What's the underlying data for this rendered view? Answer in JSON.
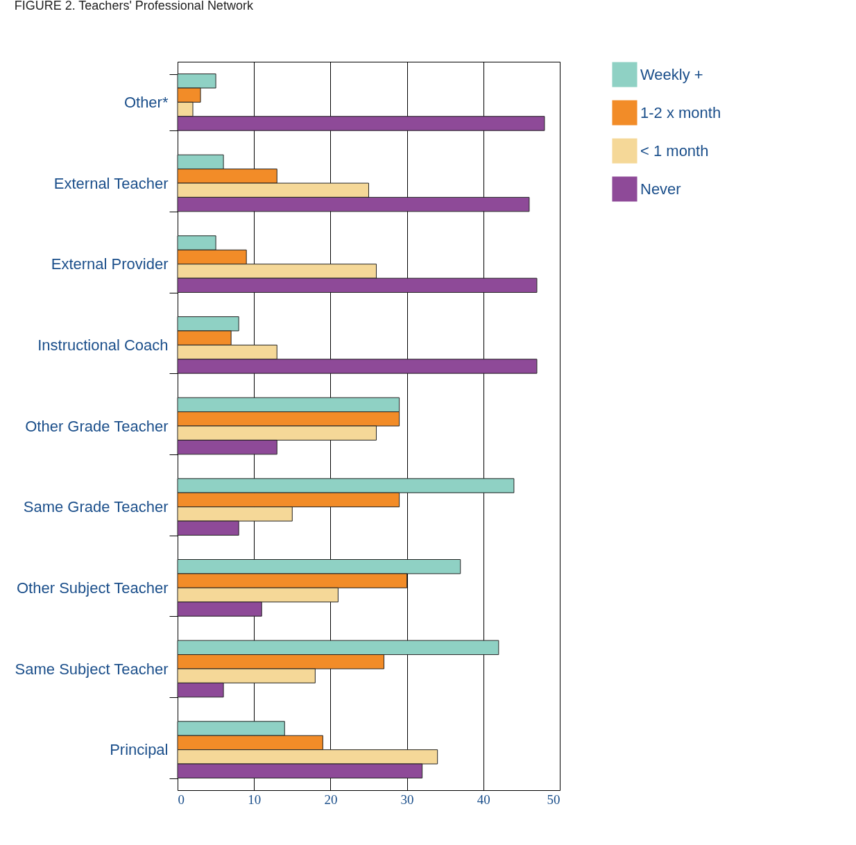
{
  "chart_data": {
    "type": "bar",
    "orientation": "horizontal",
    "title": "FIGURE 2. Teachers' Professional Network",
    "categories": [
      "Other*",
      "External Teacher",
      "External Provider",
      "Instructional Coach",
      "Other Grade Teacher",
      "Same Grade Teacher",
      "Other Subject Teacher",
      "Same Subject Teacher",
      "Principal"
    ],
    "series": [
      {
        "name": "Weekly +",
        "color": "#8fd1c4",
        "values": [
          5,
          6,
          5,
          8,
          29,
          44,
          37,
          42,
          14
        ]
      },
      {
        "name": "1-2 x month",
        "color": "#f28c28",
        "values": [
          3,
          13,
          9,
          7,
          29,
          29,
          30,
          27,
          19
        ]
      },
      {
        "name": "< 1 month",
        "color": "#f5d898",
        "values": [
          2,
          25,
          26,
          13,
          26,
          15,
          21,
          18,
          34
        ]
      },
      {
        "name": "Never",
        "color": "#8e4a98",
        "values": [
          48,
          46,
          47,
          47,
          13,
          8,
          11,
          6,
          32
        ]
      }
    ],
    "xlim": [
      0,
      50
    ],
    "xticks": [
      0,
      10,
      20,
      30,
      40,
      50
    ],
    "grid": "x",
    "legend": "right"
  }
}
